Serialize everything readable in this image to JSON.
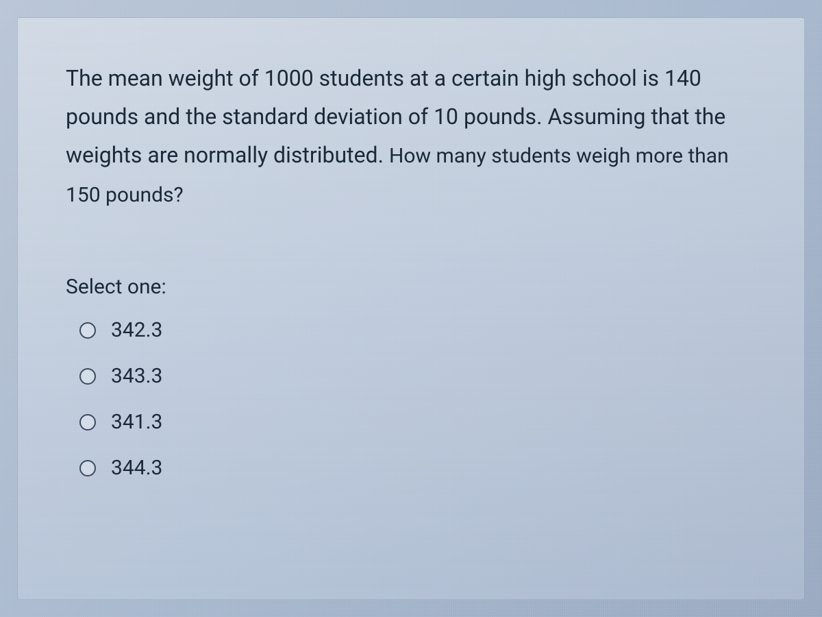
{
  "question": {
    "text_part1": "The mean weight of 1000 students at a certain high school is 140 pounds and the standard deviation of 10 pounds. Assuming that the weights are normally distributed. ",
    "text_part2": "How many students weigh more than 150 pounds?",
    "select_label": "Select one:",
    "options": [
      {
        "label": "342.3",
        "selected": false
      },
      {
        "label": "343.3",
        "selected": false
      },
      {
        "label": "341.3",
        "selected": false
      },
      {
        "label": "344.3",
        "selected": false
      }
    ]
  },
  "styling": {
    "background_gradient_start": "#b8c5d6",
    "background_gradient_end": "#98a8c0",
    "text_color": "#1a2838",
    "radio_border_color": "#3a4a5c",
    "question_fontsize": 32,
    "option_fontsize": 30,
    "container_padding": 60
  }
}
